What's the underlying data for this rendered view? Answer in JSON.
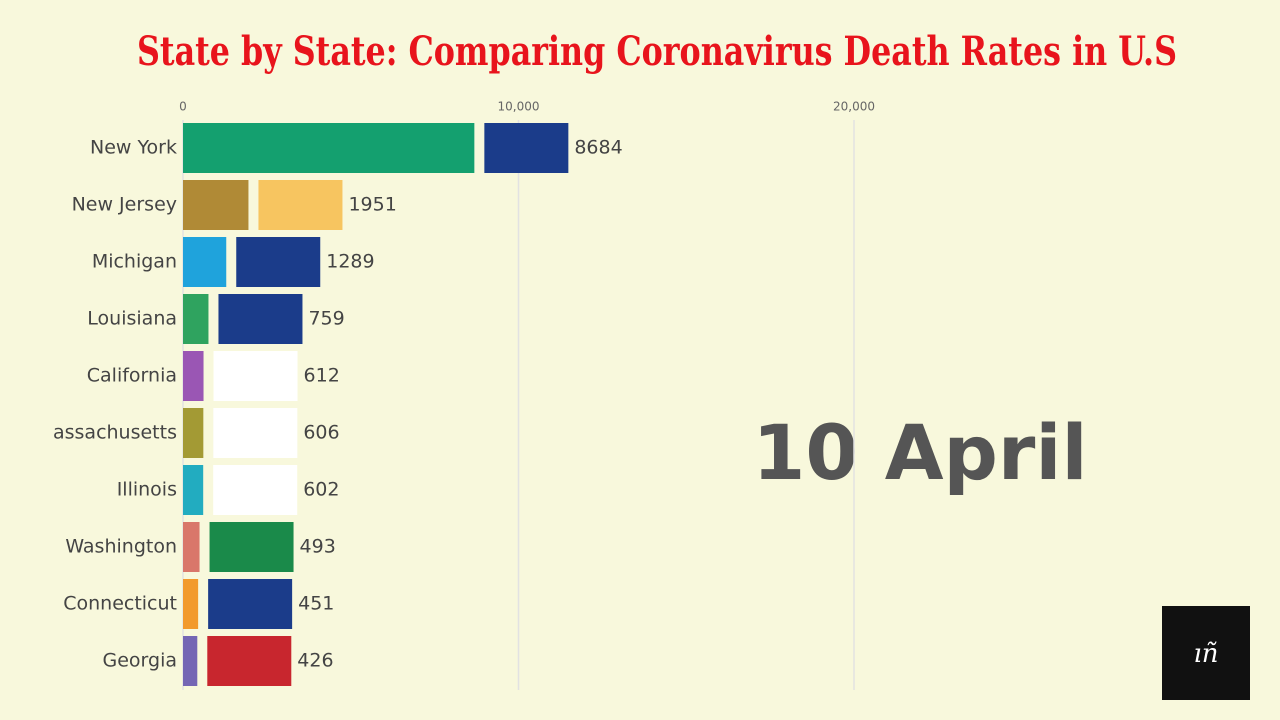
{
  "chart_data": {
    "type": "bar",
    "orientation": "horizontal",
    "title": "State by State: Comparing Coronavirus Death Rates in U.S",
    "annotation": "10 April",
    "categories": [
      "New York",
      "New Jersey",
      "Michigan",
      "Louisiana",
      "California",
      "assachusetts",
      "Illinois",
      "Washington",
      "Connecticut",
      "Georgia"
    ],
    "values": [
      8684,
      1951,
      1289,
      759,
      612,
      606,
      602,
      493,
      451,
      426
    ],
    "colors": [
      "#14a06f",
      "#b08a36",
      "#1fa3dc",
      "#2fa35f",
      "#9a56b4",
      "#a39a34",
      "#22acc0",
      "#d9776a",
      "#f29a2c",
      "#7466b4"
    ],
    "xlim": [
      0,
      20000
    ],
    "xticks": [
      0,
      {
        "value": 10000,
        "label": "10,000"
      },
      {
        "value": 20000,
        "label": "20,000"
      }
    ],
    "grid": true
  }
}
